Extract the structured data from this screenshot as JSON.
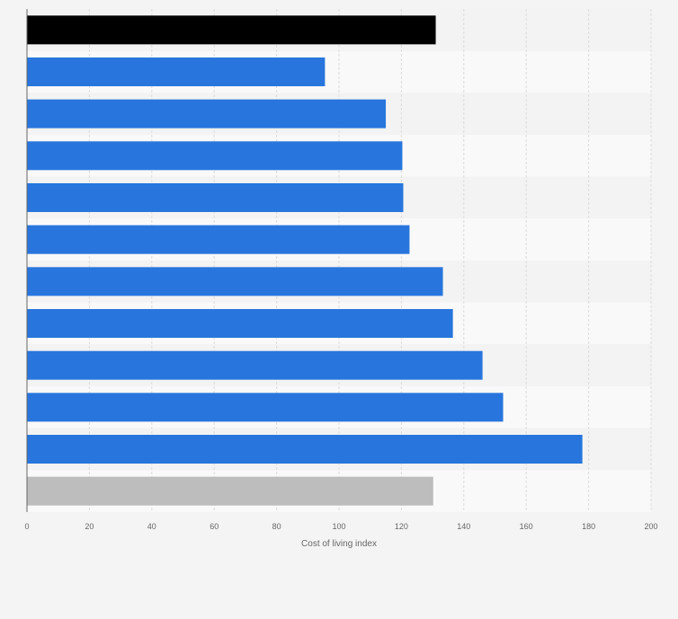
{
  "chart_data": {
    "type": "bar",
    "orientation": "horizontal",
    "title": "",
    "xlabel": "Cost of living index",
    "ylabel": "",
    "xlim": [
      0,
      200
    ],
    "x_ticks": [
      0,
      20,
      40,
      60,
      80,
      100,
      120,
      140,
      160,
      180,
      200
    ],
    "grid": true,
    "legend": "none",
    "categories": [
      "",
      "",
      "",
      "",
      "",
      "",
      "",
      "",
      "",
      "",
      "",
      ""
    ],
    "values": [
      131,
      95.5,
      115,
      120.3,
      120.6,
      122.6,
      133.3,
      136.5,
      146,
      152.6,
      178,
      130.2
    ],
    "colors": [
      "#000000",
      "#2876dd",
      "#2876dd",
      "#2876dd",
      "#2876dd",
      "#2876dd",
      "#2876dd",
      "#2876dd",
      "#2876dd",
      "#2876dd",
      "#2876dd",
      "#bdbdbd"
    ]
  }
}
